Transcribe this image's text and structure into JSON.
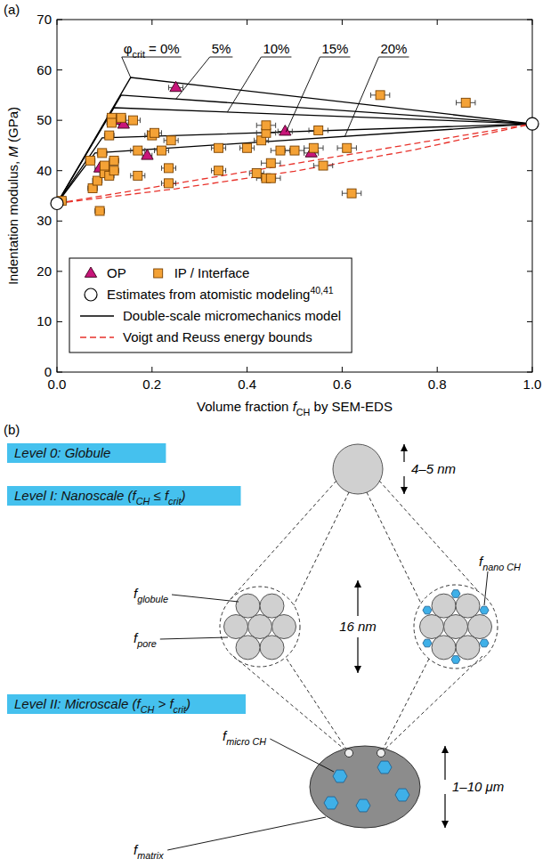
{
  "chart_data": {
    "type": "scatter",
    "panel_label": "(a)",
    "x_label": [
      {
        "text": "Volume fraction "
      },
      {
        "italic": "f"
      },
      {
        "sub": "CH"
      },
      {
        "text": " by SEM-EDS"
      }
    ],
    "y_label": [
      {
        "text": "Indentation modulus, "
      },
      {
        "italic": "M"
      },
      {
        "text": " (GPa)"
      }
    ],
    "xlim": [
      0,
      1
    ],
    "xticks": [
      {
        "value": 0,
        "label": "0.0"
      },
      0.2,
      0.4,
      0.6,
      0.8,
      {
        "value": 1,
        "label": "1.0"
      }
    ],
    "ylim": [
      0,
      70
    ],
    "yticks": [
      0,
      10,
      20,
      30,
      40,
      50,
      60,
      70
    ],
    "grid": false,
    "legend": "bottom",
    "annotation_prefix": [
      {
        "text": "φ"
      },
      {
        "sub": "crit"
      },
      {
        "text": " = "
      }
    ],
    "series": [
      {
        "name": "OP",
        "type": "scatter",
        "marker": "triangle",
        "color": "#c8157a",
        "x": [
          0.09,
          0.135,
          0.14,
          0.19,
          0.25,
          0.48,
          0.535
        ],
        "values": [
          40.5,
          50,
          49.2,
          43,
          56.5,
          47.8,
          43.5
        ],
        "x_errors": [
          0.01,
          0.01,
          0.01,
          0.01,
          0.015,
          0.015,
          0.015
        ]
      },
      {
        "name": "IP / Interface",
        "type": "scatter",
        "marker": "square",
        "color": "#f4a236",
        "x": [
          0.01,
          0.07,
          0.075,
          0.085,
          0.09,
          0.095,
          0.1,
          0.1,
          0.11,
          0.11,
          0.115,
          0.115,
          0.12,
          0.12,
          0.135,
          0.16,
          0.17,
          0.17,
          0.2,
          0.205,
          0.22,
          0.235,
          0.235,
          0.24,
          0.34,
          0.34,
          0.4,
          0.42,
          0.43,
          0.44,
          0.44,
          0.44,
          0.45,
          0.45,
          0.47,
          0.5,
          0.54,
          0.55,
          0.56,
          0.61,
          0.62,
          0.68,
          0.86
        ],
        "values": [
          34,
          42,
          36.5,
          38,
          32,
          43.5,
          39.5,
          41,
          39,
          47,
          50.5,
          49.5,
          42,
          40,
          50.5,
          50,
          39,
          44,
          47,
          47.5,
          44,
          40.5,
          37.5,
          46,
          44.5,
          40,
          44.5,
          39.5,
          46,
          47.5,
          49,
          38.5,
          41.5,
          38.5,
          44,
          44,
          44.5,
          48,
          41,
          44.5,
          35.5,
          55,
          53.5
        ],
        "x_errors": [
          0.01,
          0.01,
          0.01,
          0.01,
          0.01,
          0.01,
          0.01,
          0.01,
          0.01,
          0.01,
          0.01,
          0.01,
          0.01,
          0.01,
          0.01,
          0.015,
          0.015,
          0.015,
          0.015,
          0.015,
          0.015,
          0.015,
          0.015,
          0.015,
          0.015,
          0.015,
          0.015,
          0.015,
          0.015,
          0.02,
          0.02,
          0.02,
          0.02,
          0.02,
          0.02,
          0.02,
          0.02,
          0.02,
          0.02,
          0.02,
          0.02,
          0.02,
          0.02
        ]
      },
      {
        "name": "Estimates from atomistic modeling",
        "citation": "40,41",
        "type": "scatter",
        "marker": "open-circle",
        "color": "#000000",
        "x": [
          0,
          1
        ],
        "values": [
          33.5,
          49.3
        ]
      },
      {
        "name": "Double-scale micromechanics model",
        "type": "line",
        "color": "#000000",
        "line_style": "solid",
        "curves": [
          {
            "label": "0%",
            "x": [
              0,
              0.155,
              1
            ],
            "values": [
              33.5,
              58.5,
              49.3
            ]
          },
          {
            "label": "5%",
            "x": [
              0,
              0.135,
              1
            ],
            "values": [
              33.5,
              55,
              49.3
            ]
          },
          {
            "label": "10%",
            "x": [
              0,
              0.12,
              1
            ],
            "values": [
              33.5,
              52.5,
              49.3
            ]
          },
          {
            "label": "15%",
            "x": [
              0,
              0.095,
              1
            ],
            "values": [
              33.5,
              46.5,
              49.3
            ]
          },
          {
            "label": "20%",
            "x": [
              0,
              0.08,
              1
            ],
            "values": [
              33.5,
              43.5,
              49.3
            ]
          }
        ]
      },
      {
        "name": "Voigt and Reuss energy bounds",
        "type": "line",
        "color": "#e8322b",
        "line_style": "dashed",
        "curves": [
          {
            "x": [
              0,
              1
            ],
            "values": [
              33.5,
              49.3
            ]
          },
          {
            "x": [
              0,
              0.25,
              0.5,
              0.75,
              1
            ],
            "values": [
              33.5,
              36.4,
              39.9,
              44.1,
              49.3
            ]
          }
        ]
      }
    ]
  },
  "diagram": {
    "label": "(b)",
    "levels": [
      [
        {
          "text": "Level 0: Globule"
        }
      ],
      [
        {
          "text": "Level I: Nanoscale ("
        },
        {
          "text": "f"
        },
        {
          "sub": "CH"
        },
        {
          "text": " ≤ f"
        },
        {
          "sub": "crit"
        },
        {
          "text": ")"
        }
      ],
      [
        {
          "text": "Level II: Microscale ("
        },
        {
          "text": "f"
        },
        {
          "sub": "CH"
        },
        {
          "text": " > f"
        },
        {
          "sub": "crit"
        },
        {
          "text": ")"
        }
      ]
    ],
    "sizes": [
      "4–5 nm",
      "16 nm",
      "1–10 μm"
    ],
    "components": {
      "globule": [
        {
          "text": "f"
        },
        {
          "sub": "globule"
        }
      ],
      "pore": [
        {
          "text": "f"
        },
        {
          "sub": "pore"
        }
      ],
      "nano_ch": [
        {
          "text": "f"
        },
        {
          "sub": "nano CH"
        }
      ],
      "micro_ch": [
        {
          "text": "f"
        },
        {
          "sub": "micro CH"
        }
      ],
      "matrix": [
        {
          "text": "f"
        },
        {
          "sub": "matrix"
        }
      ]
    }
  }
}
